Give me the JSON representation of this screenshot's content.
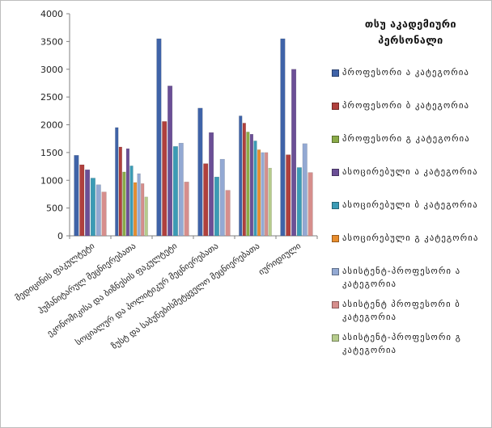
{
  "chart_data": {
    "type": "bar",
    "title": "თსუ აკადემიური პერსონალი",
    "ylim": [
      0,
      4000
    ],
    "yticks": [
      0,
      500,
      1000,
      1500,
      2000,
      2500,
      3000,
      3500,
      4000
    ],
    "grid": false,
    "legend_position": "right",
    "categories": [
      "მედიცინის ფაკულტეტი",
      "ჰუმანიტარულ მეცნიერებათა",
      "ეკონომიკისა და ბიზნესის ფაკულტეტი",
      "სოციალურ და პოლიტიკურ მეცნიერებათა",
      "ზუსტ და საბუნებისმეტყველო მეცნიერებათა",
      "იურიდიული"
    ],
    "series": [
      {
        "name": "პროფესორი ა კატეგორია",
        "color": "#3f63a8",
        "values": [
          1450,
          1950,
          3550,
          2300,
          2160,
          3550
        ]
      },
      {
        "name": "პროფესორი ბ კატეგორია",
        "color": "#b0403d",
        "values": [
          1280,
          1600,
          2060,
          1300,
          2030,
          1460
        ]
      },
      {
        "name": "პროფესორი გ კატეგორია",
        "color": "#8aab48",
        "values": [
          null,
          1150,
          null,
          null,
          1870,
          null
        ]
      },
      {
        "name": "ასოცირებული ა კატეგორია",
        "color": "#6b4f96",
        "values": [
          1190,
          1570,
          2700,
          1860,
          1830,
          3000
        ]
      },
      {
        "name": "ასოცირებული ბ კატეგორია",
        "color": "#3b9bb5",
        "values": [
          1040,
          1260,
          1610,
          1060,
          1710,
          1230
        ]
      },
      {
        "name": "ასოცირებული გ კატეგორია",
        "color": "#e88d2d",
        "values": [
          null,
          960,
          null,
          null,
          1550,
          null
        ]
      },
      {
        "name": "ასისტენტ-პროფესორი ა კატეგორია",
        "color": "#93a9d3",
        "values": [
          920,
          1120,
          1670,
          1380,
          1500,
          1660
        ]
      },
      {
        "name": "ასისტენტ პროფესორი ბ კატეგორია",
        "color": "#d68e8c",
        "values": [
          790,
          940,
          970,
          820,
          1500,
          1140
        ]
      },
      {
        "name": "ასისტენტ-პროფესორი გ კატეგორია",
        "color": "#b6cc8c",
        "values": [
          null,
          700,
          null,
          null,
          1220,
          null
        ]
      }
    ]
  }
}
